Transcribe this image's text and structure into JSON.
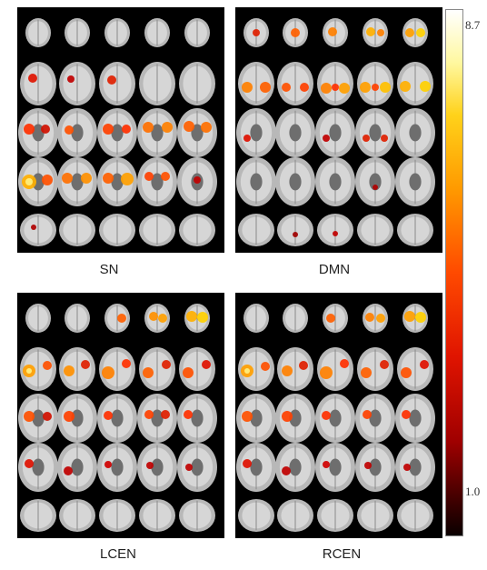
{
  "panels": [
    {
      "id": "sn",
      "label": "SN"
    },
    {
      "id": "dmn",
      "label": "DMN"
    },
    {
      "id": "lcen",
      "label": "LCEN"
    },
    {
      "id": "rcen",
      "label": "RCEN"
    }
  ],
  "colorbar": {
    "max_label": "8.7",
    "min_label": "1.0",
    "colormap": "hot (black-red-yellow-white)"
  }
}
